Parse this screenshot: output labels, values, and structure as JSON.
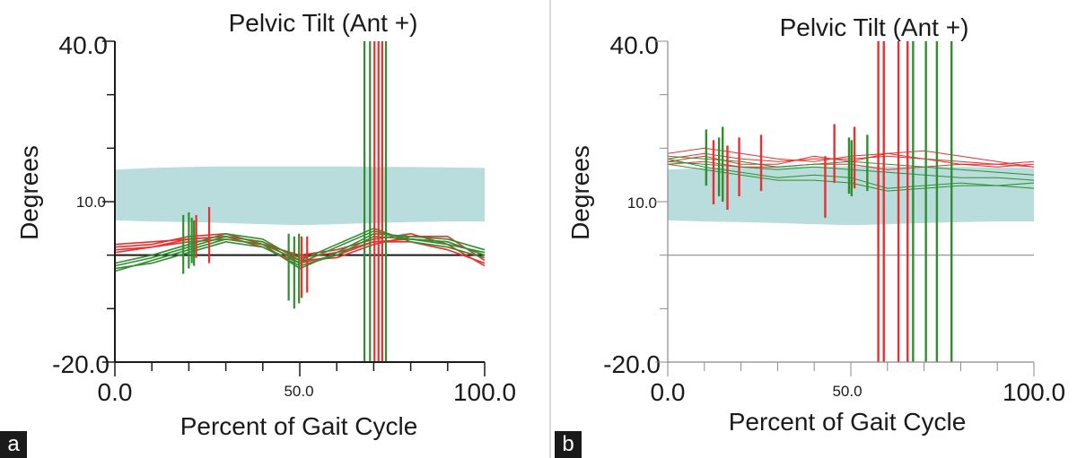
{
  "figure": {
    "letters": [
      "a",
      "b"
    ]
  },
  "chart_data": [
    {
      "type": "line",
      "panel_letter": "a",
      "title": "Pelvic Tilt (Ant +)",
      "xlabel": "Percent of Gait Cycle",
      "ylabel": "Degrees",
      "xlim": [
        0,
        100
      ],
      "ylim": [
        -20,
        40
      ],
      "x_tick_labels": [
        "0.0",
        "50.0",
        "100.0"
      ],
      "y_tick_labels": [
        "40.0",
        "10.0",
        "-20.0"
      ],
      "zero_line": 0,
      "normal_band": {
        "x": [
          0,
          10,
          20,
          30,
          40,
          50,
          60,
          70,
          80,
          90,
          100
        ],
        "upper": [
          16,
          16.3,
          16.5,
          16.6,
          16.6,
          16.6,
          16.6,
          16.5,
          16.5,
          16.4,
          16.3
        ],
        "lower": [
          6.5,
          6.3,
          6.2,
          6.0,
          5.8,
          5.6,
          5.8,
          6.0,
          6.2,
          6.3,
          6.3
        ]
      },
      "color_legend": {
        "red": "#e83030",
        "green": "#2f8f2f"
      },
      "series": [
        {
          "color": "red",
          "x": [
            0,
            10,
            20,
            30,
            40,
            50,
            60,
            70,
            80,
            90,
            100
          ],
          "y": [
            2,
            2.5,
            3.0,
            3.5,
            2.5,
            -0.5,
            0.5,
            2.5,
            3.0,
            2.5,
            0.0
          ]
        },
        {
          "color": "red",
          "x": [
            0,
            10,
            20,
            30,
            40,
            50,
            60,
            70,
            80,
            90,
            100
          ],
          "y": [
            1.5,
            2.0,
            3.5,
            4.0,
            2.0,
            -1.0,
            -0.5,
            2.0,
            3.5,
            3.5,
            -1.0
          ]
        },
        {
          "color": "red",
          "x": [
            0,
            10,
            20,
            30,
            40,
            50,
            60,
            70,
            80,
            90,
            100
          ],
          "y": [
            1.0,
            1.5,
            2.5,
            3.0,
            2.0,
            0.0,
            1.0,
            3.0,
            4.0,
            2.0,
            -2.0
          ]
        },
        {
          "color": "red",
          "x": [
            0,
            10,
            20,
            30,
            40,
            50,
            60,
            70,
            80,
            90,
            100
          ],
          "y": [
            0.5,
            1.5,
            3.0,
            3.5,
            1.5,
            -1.5,
            0.0,
            2.5,
            2.5,
            1.0,
            -1.5
          ]
        },
        {
          "color": "green",
          "x": [
            0,
            10,
            20,
            30,
            40,
            50,
            60,
            70,
            80,
            90,
            100
          ],
          "y": [
            -2.0,
            -0.5,
            1.5,
            3.5,
            2.5,
            -1.5,
            1.5,
            4.5,
            3.0,
            2.0,
            0.5
          ]
        },
        {
          "color": "green",
          "x": [
            0,
            10,
            20,
            30,
            40,
            50,
            60,
            70,
            80,
            90,
            100
          ],
          "y": [
            -3.0,
            -1.0,
            1.0,
            3.0,
            2.0,
            -2.5,
            0.5,
            4.0,
            3.5,
            3.0,
            1.0
          ]
        },
        {
          "color": "green",
          "x": [
            0,
            10,
            20,
            30,
            40,
            50,
            60,
            70,
            80,
            90,
            100
          ],
          "y": [
            -1.5,
            0.0,
            2.0,
            4.0,
            3.0,
            -1.0,
            2.0,
            5.0,
            2.5,
            1.5,
            -0.5
          ]
        },
        {
          "color": "green",
          "x": [
            0,
            10,
            20,
            30,
            40,
            50,
            60,
            70,
            80,
            90,
            100
          ],
          "y": [
            -2.5,
            -1.5,
            0.5,
            2.5,
            1.5,
            -2.0,
            0.0,
            3.5,
            3.0,
            2.5,
            0.0
          ]
        }
      ],
      "event_markers": [
        {
          "color": "green",
          "x": 18.5,
          "y": [
            -3.5,
            7.5
          ]
        },
        {
          "color": "green",
          "x": 20.0,
          "y": [
            -2.5,
            8.0
          ]
        },
        {
          "color": "green",
          "x": 20.8,
          "y": [
            -1.5,
            7.0
          ]
        },
        {
          "color": "green",
          "x": 21.4,
          "y": [
            -2.0,
            6.5
          ]
        },
        {
          "color": "red",
          "x": 22.0,
          "y": [
            -0.5,
            7.5
          ]
        },
        {
          "color": "red",
          "x": 25.5,
          "y": [
            -1.5,
            9.0
          ]
        },
        {
          "color": "green",
          "x": 47.0,
          "y": [
            -8.5,
            4.0
          ]
        },
        {
          "color": "green",
          "x": 48.5,
          "y": [
            -10.0,
            3.5
          ]
        },
        {
          "color": "green",
          "x": 49.8,
          "y": [
            -9.0,
            4.0
          ]
        },
        {
          "color": "red",
          "x": 50.5,
          "y": [
            -8.0,
            3.5
          ]
        },
        {
          "color": "red",
          "x": 52.0,
          "y": [
            -7.0,
            3.5
          ]
        },
        {
          "color": "green",
          "x": 67.5,
          "y": [
            -20,
            40
          ]
        },
        {
          "color": "green",
          "x": 69.0,
          "y": [
            -20,
            40
          ]
        },
        {
          "color": "red",
          "x": 70.2,
          "y": [
            -20,
            40
          ]
        },
        {
          "color": "red",
          "x": 71.3,
          "y": [
            -20,
            40
          ]
        },
        {
          "color": "red",
          "x": 72.3,
          "y": [
            -20,
            40
          ]
        },
        {
          "color": "green",
          "x": 73.3,
          "y": [
            -20,
            40
          ]
        }
      ]
    },
    {
      "type": "line",
      "panel_letter": "b",
      "title": "Pelvic Tilt (Ant +)",
      "xlabel": "Percent of Gait Cycle",
      "ylabel": "Degrees",
      "xlim": [
        0,
        100
      ],
      "ylim": [
        -20,
        40
      ],
      "x_tick_labels": [
        "0.0",
        "50.0",
        "100.0"
      ],
      "y_tick_labels": [
        "40.0",
        "10.0",
        "-20.0"
      ],
      "zero_line": 0,
      "normal_band": {
        "x": [
          0,
          10,
          20,
          30,
          40,
          50,
          60,
          70,
          80,
          90,
          100
        ],
        "upper": [
          16,
          16.3,
          16.5,
          16.6,
          16.6,
          16.6,
          16.6,
          16.5,
          16.5,
          16.4,
          16.3
        ],
        "lower": [
          6.5,
          6.3,
          6.2,
          6.0,
          5.8,
          5.6,
          5.8,
          6.0,
          6.2,
          6.3,
          6.3
        ]
      },
      "color_legend": {
        "red": "#e83030",
        "green": "#2f8f2f"
      },
      "series": [
        {
          "color": "red",
          "x": [
            0,
            10,
            20,
            30,
            40,
            50,
            60,
            70,
            80,
            90,
            100
          ],
          "y": [
            19.0,
            20.0,
            19.0,
            18.0,
            17.5,
            18.5,
            19.0,
            18.0,
            17.5,
            17.0,
            17.5
          ]
        },
        {
          "color": "red",
          "x": [
            0,
            10,
            20,
            30,
            40,
            50,
            60,
            70,
            80,
            90,
            100
          ],
          "y": [
            18.0,
            19.0,
            18.0,
            17.5,
            18.0,
            18.0,
            18.5,
            18.0,
            17.0,
            17.0,
            16.5
          ]
        },
        {
          "color": "red",
          "x": [
            0,
            10,
            20,
            30,
            40,
            50,
            60,
            70,
            80,
            90,
            100
          ],
          "y": [
            17.5,
            18.5,
            17.0,
            17.0,
            18.5,
            17.5,
            19.0,
            19.5,
            18.5,
            17.5,
            16.5
          ]
        },
        {
          "color": "red",
          "x": [
            0,
            10,
            20,
            30,
            40,
            50,
            60,
            70,
            80,
            90,
            100
          ],
          "y": [
            17.0,
            17.5,
            16.5,
            16.5,
            17.0,
            17.0,
            16.0,
            16.5,
            17.0,
            16.5,
            17.0
          ]
        },
        {
          "color": "green",
          "x": [
            0,
            10,
            20,
            30,
            40,
            50,
            60,
            70,
            80,
            90,
            100
          ],
          "y": [
            18.5,
            18.0,
            17.5,
            16.5,
            17.0,
            17.5,
            17.0,
            16.5,
            16.0,
            15.5,
            15.0
          ]
        },
        {
          "color": "green",
          "x": [
            0,
            10,
            20,
            30,
            40,
            50,
            60,
            70,
            80,
            90,
            100
          ],
          "y": [
            17.5,
            17.0,
            16.5,
            16.0,
            16.5,
            16.0,
            15.5,
            15.0,
            14.5,
            14.5,
            14.0
          ]
        },
        {
          "color": "green",
          "x": [
            0,
            10,
            20,
            30,
            40,
            50,
            60,
            70,
            80,
            90,
            100
          ],
          "y": [
            18.0,
            16.5,
            15.5,
            14.5,
            15.0,
            14.5,
            12.5,
            13.0,
            13.5,
            13.0,
            12.5
          ]
        },
        {
          "color": "green",
          "x": [
            0,
            10,
            20,
            30,
            40,
            50,
            60,
            70,
            80,
            90,
            100
          ],
          "y": [
            17.0,
            16.0,
            15.0,
            14.0,
            14.0,
            13.5,
            12.0,
            12.5,
            13.0,
            13.0,
            13.5
          ]
        }
      ],
      "event_markers": [
        {
          "color": "green",
          "x": 10.5,
          "y": [
            13.0,
            23.5
          ]
        },
        {
          "color": "red",
          "x": 12.5,
          "y": [
            9.5,
            21.5
          ]
        },
        {
          "color": "green",
          "x": 14.0,
          "y": [
            11.0,
            22.0
          ]
        },
        {
          "color": "green",
          "x": 15.0,
          "y": [
            10.0,
            24.0
          ]
        },
        {
          "color": "red",
          "x": 16.3,
          "y": [
            8.5,
            20.5
          ]
        },
        {
          "color": "red",
          "x": 19.5,
          "y": [
            11.0,
            22.0
          ]
        },
        {
          "color": "red",
          "x": 25.5,
          "y": [
            12.0,
            22.5
          ]
        },
        {
          "color": "red",
          "x": 43.0,
          "y": [
            7.0,
            18.5
          ]
        },
        {
          "color": "red",
          "x": 45.5,
          "y": [
            13.5,
            24.5
          ]
        },
        {
          "color": "green",
          "x": 49.5,
          "y": [
            11.5,
            22.0
          ]
        },
        {
          "color": "green",
          "x": 50.2,
          "y": [
            11.0,
            21.5
          ]
        },
        {
          "color": "red",
          "x": 51.0,
          "y": [
            12.5,
            24.0
          ]
        },
        {
          "color": "green",
          "x": 54.5,
          "y": [
            12.0,
            22.5
          ]
        },
        {
          "color": "red",
          "x": 57.5,
          "y": [
            -20,
            40
          ]
        },
        {
          "color": "red",
          "x": 59.0,
          "y": [
            -20,
            40
          ]
        },
        {
          "color": "red",
          "x": 63.0,
          "y": [
            -20,
            40
          ]
        },
        {
          "color": "red",
          "x": 65.5,
          "y": [
            -20,
            40
          ]
        },
        {
          "color": "green",
          "x": 67.0,
          "y": [
            -20,
            40
          ]
        },
        {
          "color": "green",
          "x": 70.5,
          "y": [
            -20,
            40
          ]
        },
        {
          "color": "green",
          "x": 73.5,
          "y": [
            -20,
            40
          ]
        },
        {
          "color": "green",
          "x": 77.5,
          "y": [
            -20,
            40
          ]
        }
      ]
    }
  ]
}
